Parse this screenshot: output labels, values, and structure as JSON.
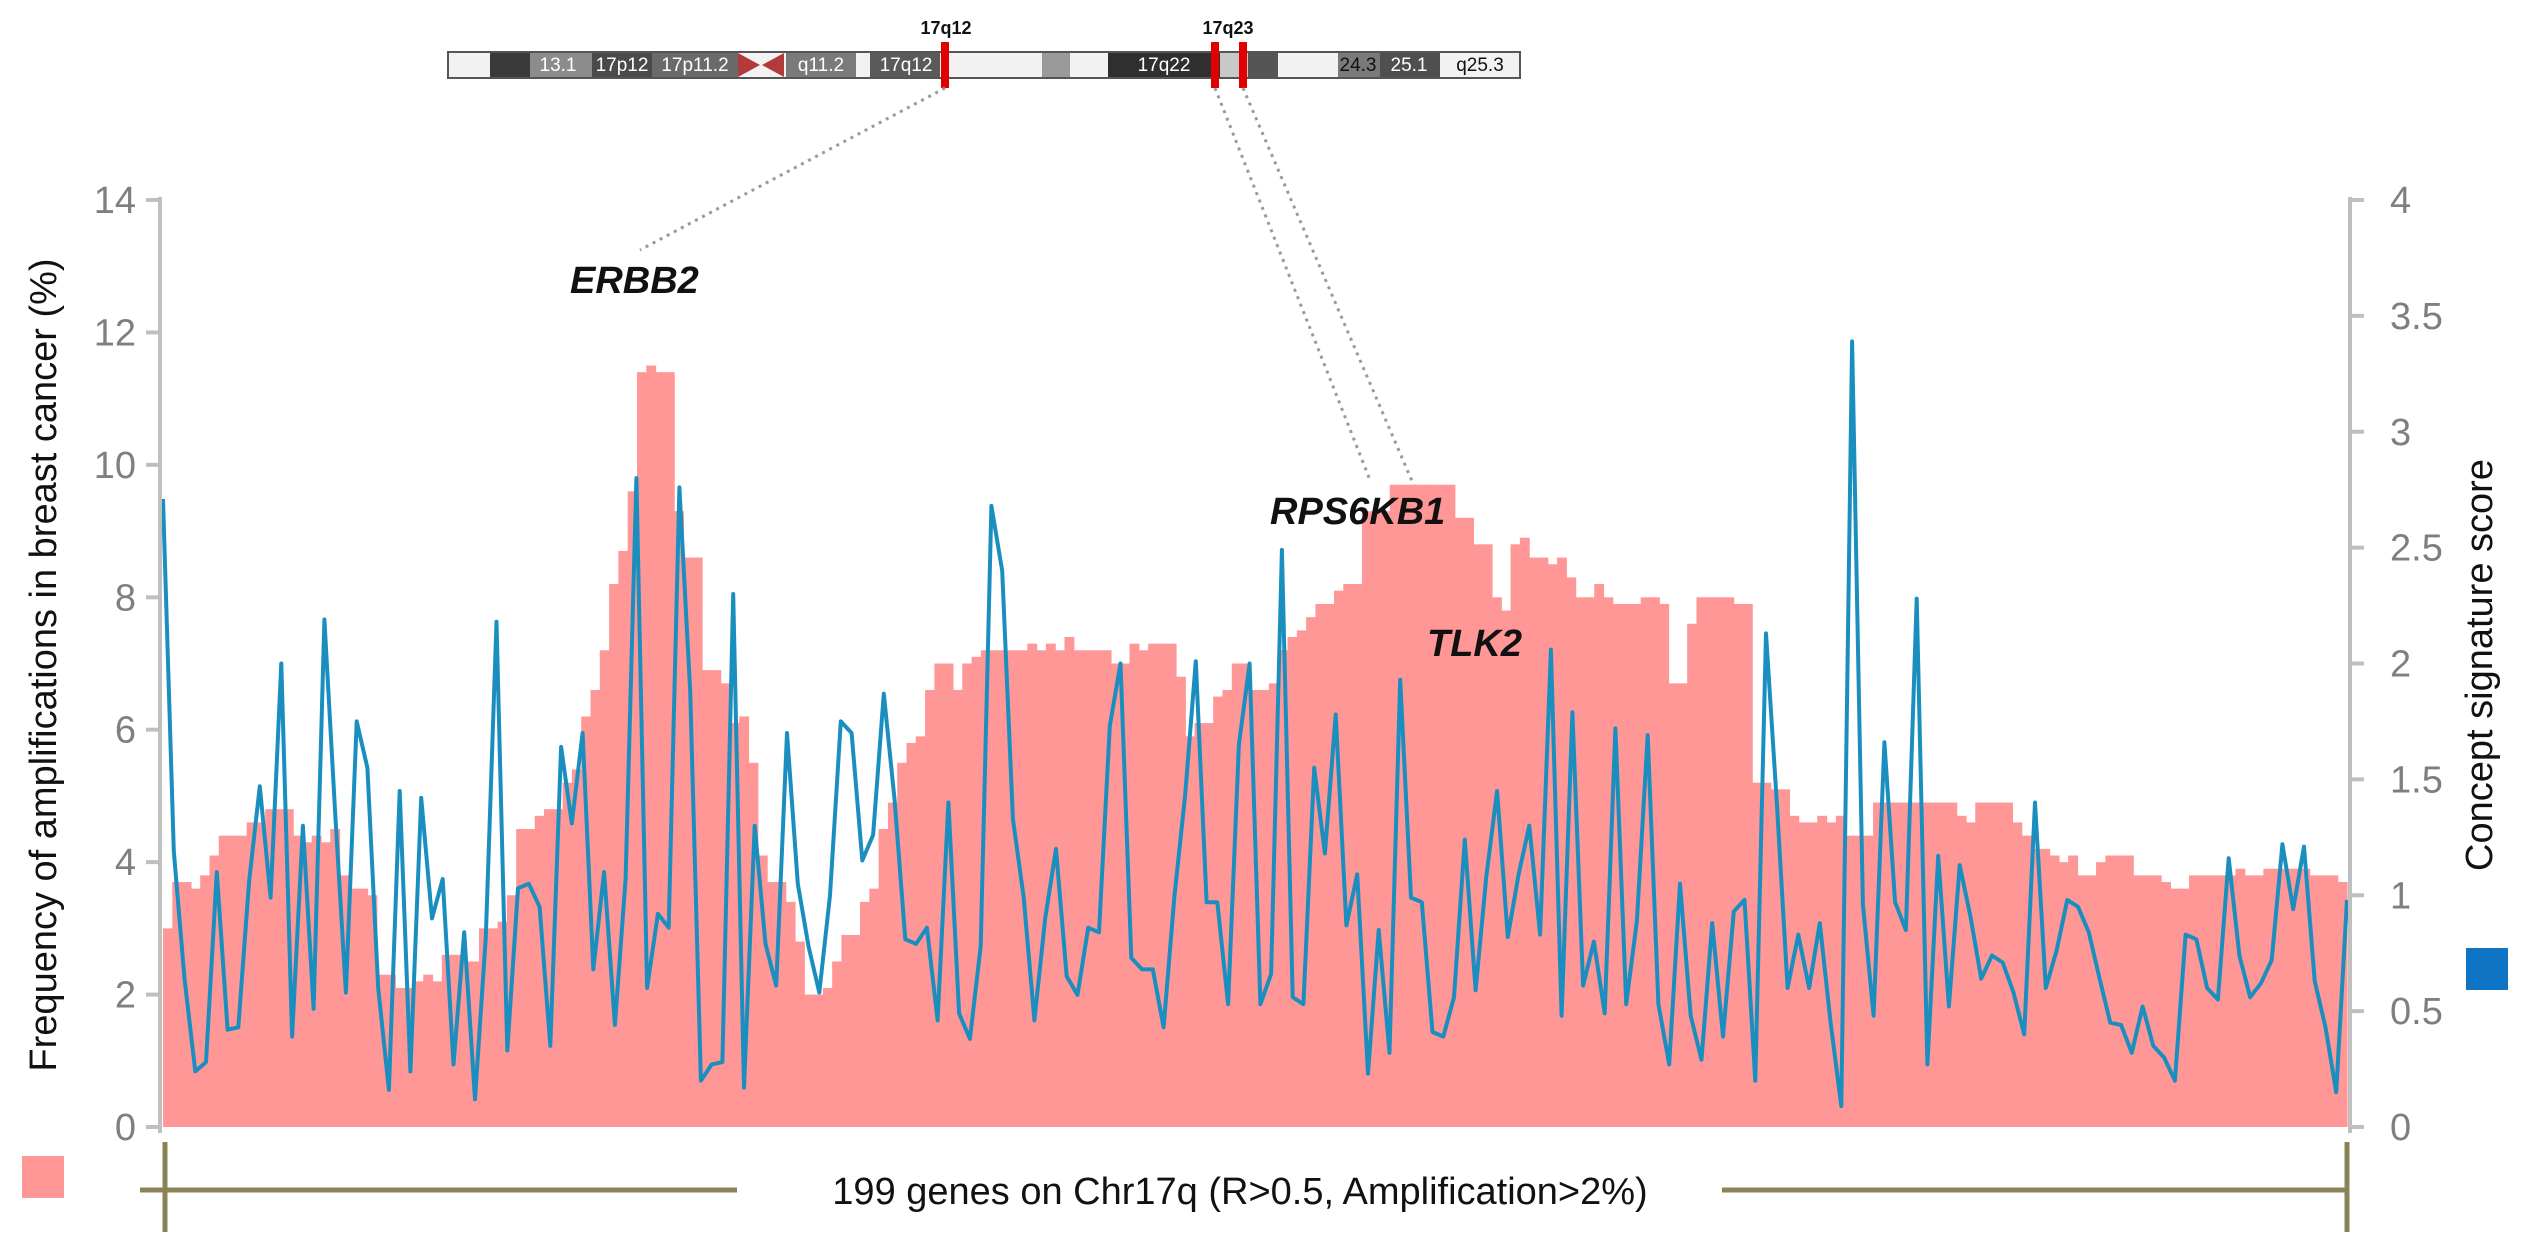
{
  "chart_data": {
    "type": "bar",
    "x_label": "199 genes on Chr17q (R>0.5, Amplification>2%)",
    "y_left": {
      "label": "Frequency of amplifications in breast cancer (%)",
      "range": [
        0,
        14
      ],
      "ticks": [
        "0",
        "2",
        "4",
        "6",
        "8",
        "10",
        "12",
        "14"
      ]
    },
    "y_right": {
      "label": "Concept signature score",
      "range": [
        0,
        4
      ],
      "ticks": [
        "0",
        "0.5",
        "1",
        "1.5",
        "2",
        "2.5",
        "3",
        "3.5",
        "4"
      ]
    },
    "legend": [
      {
        "swatch": "#ff9797",
        "position": "bottom-left"
      },
      {
        "swatch": "#0f74c4",
        "position": "right"
      }
    ],
    "colors": {
      "bars": "#ff9797",
      "line": "#1a8fbf",
      "axis": "#bfbfbf",
      "marker": "#e00000",
      "bracket": "#8b8356"
    },
    "grid": false,
    "bar_values": [
      3.0,
      3.7,
      3.7,
      3.6,
      3.8,
      4.1,
      4.4,
      4.4,
      4.4,
      4.6,
      4.6,
      4.8,
      4.8,
      4.8,
      4.4,
      4.3,
      4.4,
      4.3,
      4.5,
      3.8,
      3.6,
      3.6,
      3.5,
      2.3,
      2.3,
      2.1,
      2.1,
      2.2,
      2.3,
      2.2,
      2.6,
      2.6,
      2.5,
      2.5,
      3.0,
      3.0,
      3.1,
      3.5,
      4.5,
      4.5,
      4.7,
      4.8,
      4.8,
      5.2,
      5.4,
      6.2,
      6.6,
      7.2,
      8.2,
      8.7,
      9.6,
      11.4,
      11.5,
      11.4,
      11.4,
      9.3,
      8.6,
      8.6,
      6.9,
      6.9,
      6.7,
      6.1,
      6.2,
      5.5,
      4.1,
      3.7,
      3.7,
      3.4,
      2.8,
      2.0,
      2.0,
      2.1,
      2.5,
      2.9,
      2.9,
      3.4,
      3.6,
      4.5,
      4.9,
      5.5,
      5.8,
      5.9,
      6.6,
      7.0,
      7.0,
      6.6,
      7.0,
      7.1,
      7.2,
      7.2,
      7.2,
      7.2,
      7.2,
      7.3,
      7.2,
      7.3,
      7.2,
      7.4,
      7.2,
      7.2,
      7.2,
      7.2,
      7.0,
      7.0,
      7.3,
      7.2,
      7.3,
      7.3,
      7.3,
      6.8,
      5.9,
      6.1,
      6.1,
      6.5,
      6.6,
      7.0,
      7.0,
      6.6,
      6.6,
      6.7,
      7.2,
      7.4,
      7.5,
      7.7,
      7.9,
      7.9,
      8.1,
      8.2,
      8.2,
      9.3,
      9.3,
      9.3,
      9.7,
      9.7,
      9.7,
      9.7,
      9.7,
      9.7,
      9.7,
      9.2,
      9.2,
      8.8,
      8.8,
      8.0,
      7.8,
      8.8,
      8.9,
      8.6,
      8.6,
      8.5,
      8.6,
      8.3,
      8.0,
      8.0,
      8.2,
      8.0,
      7.9,
      7.9,
      7.9,
      8.0,
      8.0,
      7.9,
      6.7,
      6.7,
      7.6,
      8.0,
      8.0,
      8.0,
      8.0,
      7.9,
      7.9,
      5.2,
      5.2,
      5.1,
      5.1,
      4.7,
      4.6,
      4.6,
      4.7,
      4.6,
      4.7,
      4.4,
      4.4,
      4.4,
      4.9,
      4.9,
      4.9,
      4.9,
      4.9,
      4.9,
      4.9,
      4.9,
      4.9,
      4.7,
      4.6,
      4.9,
      4.9,
      4.9,
      4.9,
      4.6,
      4.4,
      4.2,
      4.2,
      4.1,
      4.0,
      4.1,
      3.8,
      3.8,
      4.0,
      4.1,
      4.1,
      4.1,
      3.8,
      3.8,
      3.8,
      3.7,
      3.6,
      3.6,
      3.8,
      3.8,
      3.8,
      3.8,
      3.8,
      3.9,
      3.8,
      3.8,
      3.9,
      3.9,
      3.9,
      3.9,
      3.9,
      3.8,
      3.8,
      3.8,
      3.7
    ],
    "line_values": [
      2.71,
      1.19,
      0.64,
      0.24,
      0.28,
      1.1,
      0.42,
      0.43,
      1.06,
      1.47,
      0.99,
      2.0,
      0.39,
      1.3,
      0.51,
      2.19,
      1.36,
      0.58,
      1.75,
      1.55,
      0.6,
      0.16,
      1.45,
      0.24,
      1.42,
      0.9,
      1.07,
      0.27,
      0.84,
      0.12,
      0.82,
      2.18,
      0.33,
      1.03,
      1.05,
      0.95,
      0.35,
      1.64,
      1.31,
      1.7,
      0.68,
      1.1,
      0.44,
      1.07,
      2.8,
      0.6,
      0.92,
      0.86,
      2.76,
      1.88,
      0.2,
      0.27,
      0.28,
      2.3,
      0.17,
      1.3,
      0.79,
      0.61,
      1.7,
      1.05,
      0.78,
      0.58,
      1.0,
      1.75,
      1.7,
      1.15,
      1.26,
      1.87,
      1.41,
      0.81,
      0.79,
      0.86,
      0.46,
      1.4,
      0.49,
      0.38,
      0.78,
      2.68,
      2.4,
      1.33,
      0.99,
      0.46,
      0.9,
      1.2,
      0.65,
      0.57,
      0.86,
      0.84,
      1.73,
      2.0,
      0.73,
      0.68,
      0.68,
      0.43,
      0.99,
      1.43,
      2.01,
      0.97,
      0.97,
      0.53,
      1.65,
      2.0,
      0.53,
      0.66,
      2.49,
      0.56,
      0.53,
      1.55,
      1.18,
      1.78,
      0.87,
      1.09,
      0.23,
      0.85,
      0.32,
      1.93,
      0.99,
      0.97,
      0.41,
      0.39,
      0.56,
      1.24,
      0.59,
      1.08,
      1.45,
      0.82,
      1.09,
      1.3,
      0.83,
      2.06,
      0.48,
      1.79,
      0.61,
      0.8,
      0.49,
      1.72,
      0.53,
      0.89,
      1.69,
      0.53,
      0.27,
      1.05,
      0.48,
      0.29,
      0.88,
      0.39,
      0.93,
      0.98,
      0.2,
      2.13,
      1.4,
      0.6,
      0.83,
      0.6,
      0.88,
      0.45,
      0.09,
      3.39,
      0.96,
      0.48,
      1.66,
      0.97,
      0.85,
      2.28,
      0.27,
      1.17,
      0.52,
      1.13,
      0.91,
      0.64,
      0.74,
      0.71,
      0.58,
      0.4,
      1.4,
      0.6,
      0.76,
      0.98,
      0.95,
      0.84,
      0.64,
      0.45,
      0.44,
      0.32,
      0.52,
      0.35,
      0.3,
      0.2,
      0.83,
      0.81,
      0.6,
      0.55,
      1.16,
      0.74,
      0.56,
      0.62,
      0.72,
      1.22,
      0.94,
      1.21,
      0.63,
      0.43,
      0.15,
      0.98
    ],
    "gene_labels": [
      "ERBB2",
      "RPS6KB1",
      "TLK2"
    ],
    "ideogram": {
      "band_labels": [
        "13.1",
        "17p12",
        "17p11.2",
        "q11.2",
        "17q12",
        "17q22",
        "24.3",
        "25.1",
        "q25.3"
      ],
      "marker_labels": [
        "17q12",
        "17q23"
      ]
    }
  }
}
